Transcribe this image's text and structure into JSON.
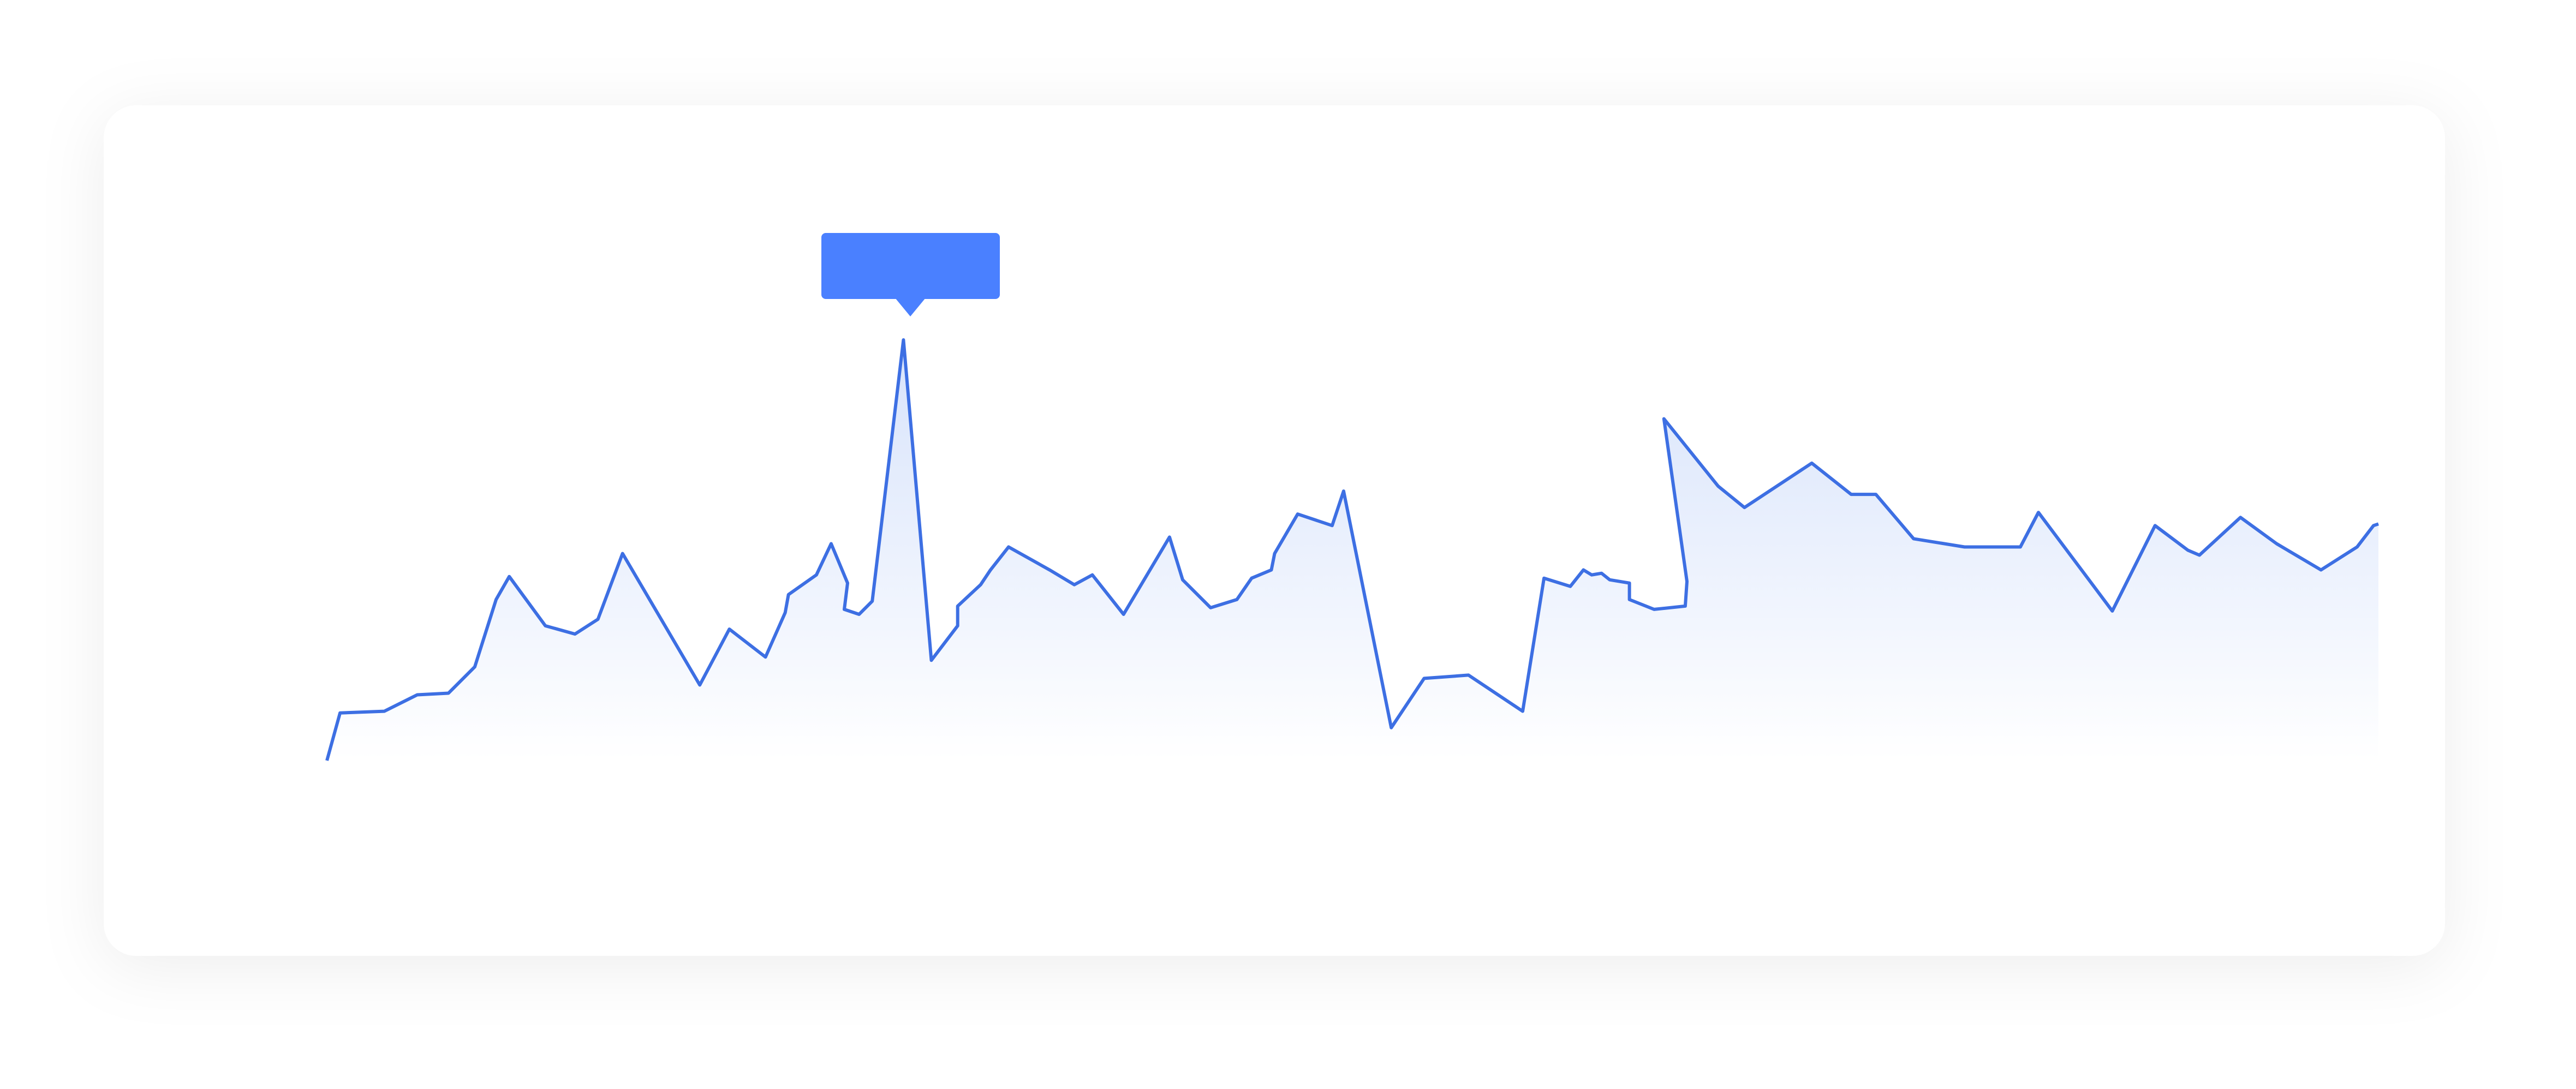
{
  "chart_data": {
    "type": "line",
    "x": [
      0,
      8,
      35,
      55,
      74,
      90,
      103,
      111,
      133,
      151,
      165,
      180,
      227,
      245,
      267,
      279,
      281,
      298,
      307,
      317,
      315,
      324,
      332,
      351,
      368,
      384,
      384,
      398,
      404,
      415,
      440,
      455,
      466,
      485,
      513,
      521,
      538,
      554,
      563,
      575,
      577,
      591,
      612,
      619,
      648,
      668,
      695,
      728,
      741,
      757,
      765,
      770,
      776,
      781,
      793,
      793,
      808,
      827,
      828,
      814,
      847,
      863,
      904,
      928,
      943,
      966,
      997,
      1031,
      1042,
      1087,
      1113,
      1133,
      1140,
      1165,
      1187,
      1214,
      1236,
      1246,
      1249
    ],
    "series": [
      {
        "color": "#3d6fe3",
        "values": [
          7,
          36,
          37,
          47,
          48,
          64,
          105,
          119,
          89,
          84,
          93,
          133,
          53,
          87,
          70,
          97,
          108,
          120,
          139,
          115,
          99,
          96,
          104,
          263,
          68,
          89,
          101,
          114,
          123,
          137,
          123,
          114,
          120,
          96,
          143,
          117,
          100,
          105,
          118,
          123,
          133,
          157,
          150,
          171,
          27,
          57,
          59,
          37,
          118,
          113,
          123,
          120,
          121,
          117,
          115,
          105,
          99,
          101,
          116,
          215,
          174,
          161,
          188,
          169,
          169,
          142,
          137,
          137,
          158,
          98,
          150,
          135,
          132,
          155,
          139,
          123,
          137,
          150,
          151
        ]
      }
    ],
    "area": true
  }
}
